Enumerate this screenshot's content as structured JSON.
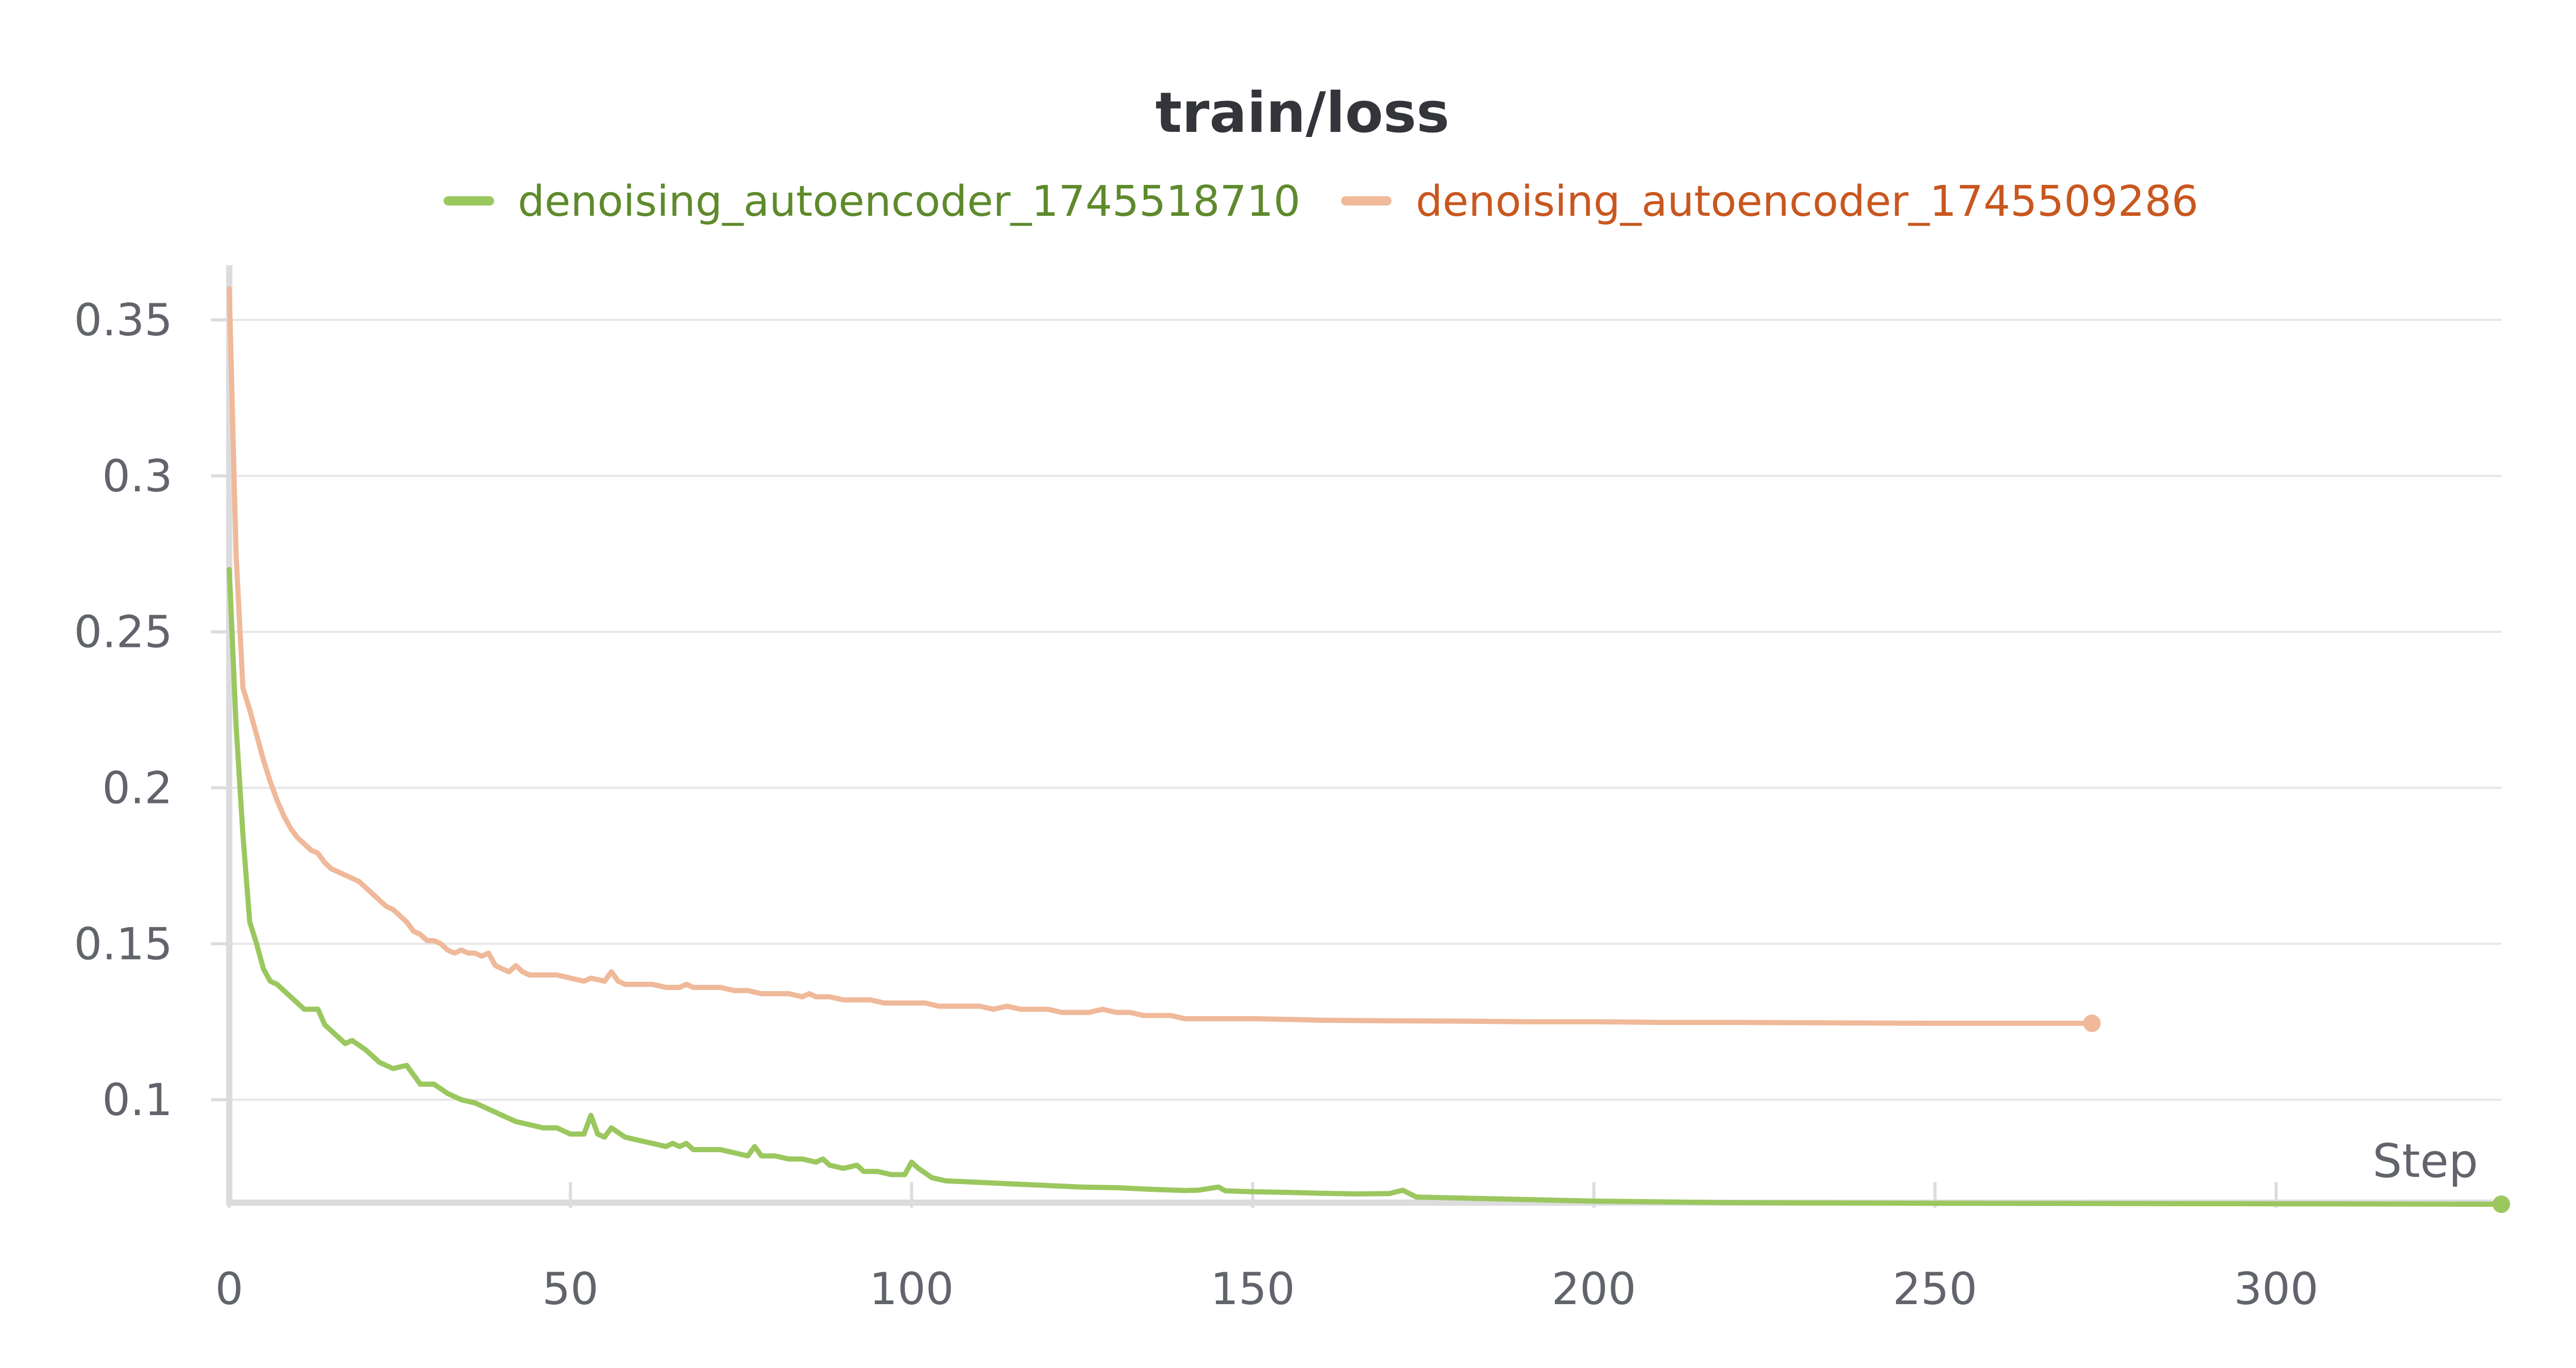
{
  "chart_data": {
    "type": "line",
    "title": "train/loss",
    "xlabel": "Step",
    "ylabel": "",
    "xlim": [
      0,
      333
    ],
    "ylim": [
      0.067,
      0.37
    ],
    "x_ticks": [
      "0",
      "50",
      "100",
      "150",
      "200",
      "250",
      "300"
    ],
    "y_ticks": [
      "0.1",
      "0.15",
      "0.2",
      "0.25",
      "0.3",
      "0.35"
    ],
    "legend_position": "top-center",
    "grid": true,
    "series": [
      {
        "name": "denoising_autoencoder_1745518710",
        "color": "#9bc75f",
        "text_color": "#5e8a2c",
        "end_marker": true,
        "points": [
          [
            0,
            0.27
          ],
          [
            1,
            0.22
          ],
          [
            2,
            0.185
          ],
          [
            3,
            0.157
          ],
          [
            4,
            0.15
          ],
          [
            5,
            0.142
          ],
          [
            6,
            0.138
          ],
          [
            7,
            0.137
          ],
          [
            8,
            0.135
          ],
          [
            9,
            0.133
          ],
          [
            10,
            0.131
          ],
          [
            11,
            0.129
          ],
          [
            13,
            0.129
          ],
          [
            14,
            0.124
          ],
          [
            16,
            0.12
          ],
          [
            17,
            0.118
          ],
          [
            18,
            0.119
          ],
          [
            20,
            0.116
          ],
          [
            22,
            0.112
          ],
          [
            24,
            0.11
          ],
          [
            26,
            0.111
          ],
          [
            28,
            0.105
          ],
          [
            30,
            0.105
          ],
          [
            32,
            0.102
          ],
          [
            34,
            0.1
          ],
          [
            36,
            0.099
          ],
          [
            38,
            0.097
          ],
          [
            40,
            0.095
          ],
          [
            42,
            0.093
          ],
          [
            44,
            0.092
          ],
          [
            46,
            0.091
          ],
          [
            48,
            0.091
          ],
          [
            50,
            0.089
          ],
          [
            52,
            0.089
          ],
          [
            53,
            0.095
          ],
          [
            54,
            0.089
          ],
          [
            55,
            0.088
          ],
          [
            56,
            0.091
          ],
          [
            58,
            0.088
          ],
          [
            60,
            0.087
          ],
          [
            62,
            0.086
          ],
          [
            64,
            0.085
          ],
          [
            65,
            0.086
          ],
          [
            66,
            0.085
          ],
          [
            67,
            0.086
          ],
          [
            68,
            0.084
          ],
          [
            70,
            0.084
          ],
          [
            72,
            0.084
          ],
          [
            74,
            0.083
          ],
          [
            76,
            0.082
          ],
          [
            77,
            0.085
          ],
          [
            78,
            0.082
          ],
          [
            80,
            0.082
          ],
          [
            82,
            0.081
          ],
          [
            84,
            0.081
          ],
          [
            86,
            0.08
          ],
          [
            87,
            0.081
          ],
          [
            88,
            0.079
          ],
          [
            90,
            0.078
          ],
          [
            92,
            0.079
          ],
          [
            93,
            0.077
          ],
          [
            95,
            0.077
          ],
          [
            97,
            0.076
          ],
          [
            99,
            0.076
          ],
          [
            100,
            0.08
          ],
          [
            101,
            0.078
          ],
          [
            103,
            0.075
          ],
          [
            105,
            0.074
          ],
          [
            110,
            0.0735
          ],
          [
            115,
            0.073
          ],
          [
            120,
            0.0725
          ],
          [
            125,
            0.072
          ],
          [
            130,
            0.0718
          ],
          [
            135,
            0.0713
          ],
          [
            140,
            0.0709
          ],
          [
            142,
            0.071
          ],
          [
            145,
            0.072
          ],
          [
            146,
            0.0708
          ],
          [
            150,
            0.0705
          ],
          [
            155,
            0.0703
          ],
          [
            160,
            0.07
          ],
          [
            165,
            0.0698
          ],
          [
            170,
            0.0699
          ],
          [
            172,
            0.071
          ],
          [
            174,
            0.0688
          ],
          [
            180,
            0.0685
          ],
          [
            190,
            0.068
          ],
          [
            200,
            0.0675
          ],
          [
            220,
            0.067
          ],
          [
            250,
            0.0668
          ],
          [
            280,
            0.0667
          ],
          [
            310,
            0.0666
          ],
          [
            333,
            0.0665
          ]
        ]
      },
      {
        "name": "denoising_autoencoder_1745509286",
        "color": "#efb99a",
        "text_color": "#c8571f",
        "end_marker": true,
        "points": [
          [
            0,
            0.36
          ],
          [
            1,
            0.275
          ],
          [
            2,
            0.232
          ],
          [
            3,
            0.225
          ],
          [
            4,
            0.217
          ],
          [
            5,
            0.209
          ],
          [
            6,
            0.202
          ],
          [
            7,
            0.196
          ],
          [
            8,
            0.191
          ],
          [
            9,
            0.187
          ],
          [
            10,
            0.184
          ],
          [
            11,
            0.182
          ],
          [
            12,
            0.18
          ],
          [
            13,
            0.179
          ],
          [
            14,
            0.176
          ],
          [
            15,
            0.174
          ],
          [
            16,
            0.173
          ],
          [
            17,
            0.172
          ],
          [
            18,
            0.171
          ],
          [
            19,
            0.17
          ],
          [
            20,
            0.168
          ],
          [
            21,
            0.166
          ],
          [
            22,
            0.164
          ],
          [
            23,
            0.162
          ],
          [
            24,
            0.161
          ],
          [
            25,
            0.159
          ],
          [
            26,
            0.157
          ],
          [
            27,
            0.154
          ],
          [
            28,
            0.153
          ],
          [
            29,
            0.151
          ],
          [
            30,
            0.151
          ],
          [
            31,
            0.15
          ],
          [
            32,
            0.148
          ],
          [
            33,
            0.147
          ],
          [
            34,
            0.148
          ],
          [
            35,
            0.147
          ],
          [
            36,
            0.147
          ],
          [
            37,
            0.146
          ],
          [
            38,
            0.147
          ],
          [
            39,
            0.143
          ],
          [
            40,
            0.142
          ],
          [
            41,
            0.141
          ],
          [
            42,
            0.143
          ],
          [
            43,
            0.141
          ],
          [
            44,
            0.14
          ],
          [
            45,
            0.14
          ],
          [
            46,
            0.14
          ],
          [
            47,
            0.14
          ],
          [
            48,
            0.14
          ],
          [
            50,
            0.139
          ],
          [
            52,
            0.138
          ],
          [
            53,
            0.139
          ],
          [
            55,
            0.138
          ],
          [
            56,
            0.141
          ],
          [
            57,
            0.138
          ],
          [
            58,
            0.137
          ],
          [
            60,
            0.137
          ],
          [
            62,
            0.137
          ],
          [
            64,
            0.136
          ],
          [
            66,
            0.136
          ],
          [
            67,
            0.137
          ],
          [
            68,
            0.136
          ],
          [
            70,
            0.136
          ],
          [
            72,
            0.136
          ],
          [
            74,
            0.135
          ],
          [
            76,
            0.135
          ],
          [
            78,
            0.134
          ],
          [
            80,
            0.134
          ],
          [
            82,
            0.134
          ],
          [
            84,
            0.133
          ],
          [
            85,
            0.134
          ],
          [
            86,
            0.133
          ],
          [
            88,
            0.133
          ],
          [
            90,
            0.132
          ],
          [
            92,
            0.132
          ],
          [
            94,
            0.132
          ],
          [
            96,
            0.131
          ],
          [
            98,
            0.131
          ],
          [
            100,
            0.131
          ],
          [
            102,
            0.131
          ],
          [
            104,
            0.13
          ],
          [
            106,
            0.13
          ],
          [
            108,
            0.13
          ],
          [
            110,
            0.13
          ],
          [
            112,
            0.129
          ],
          [
            114,
            0.13
          ],
          [
            116,
            0.129
          ],
          [
            118,
            0.129
          ],
          [
            120,
            0.129
          ],
          [
            122,
            0.128
          ],
          [
            124,
            0.128
          ],
          [
            126,
            0.128
          ],
          [
            128,
            0.129
          ],
          [
            130,
            0.128
          ],
          [
            132,
            0.128
          ],
          [
            134,
            0.127
          ],
          [
            136,
            0.127
          ],
          [
            138,
            0.127
          ],
          [
            140,
            0.126
          ],
          [
            145,
            0.126
          ],
          [
            150,
            0.126
          ],
          [
            160,
            0.1255
          ],
          [
            170,
            0.1253
          ],
          [
            180,
            0.1252
          ],
          [
            190,
            0.125
          ],
          [
            200,
            0.125
          ],
          [
            210,
            0.1248
          ],
          [
            220,
            0.1248
          ],
          [
            230,
            0.1247
          ],
          [
            240,
            0.1246
          ],
          [
            250,
            0.1245
          ],
          [
            260,
            0.1245
          ],
          [
            273,
            0.1245
          ]
        ]
      }
    ]
  }
}
